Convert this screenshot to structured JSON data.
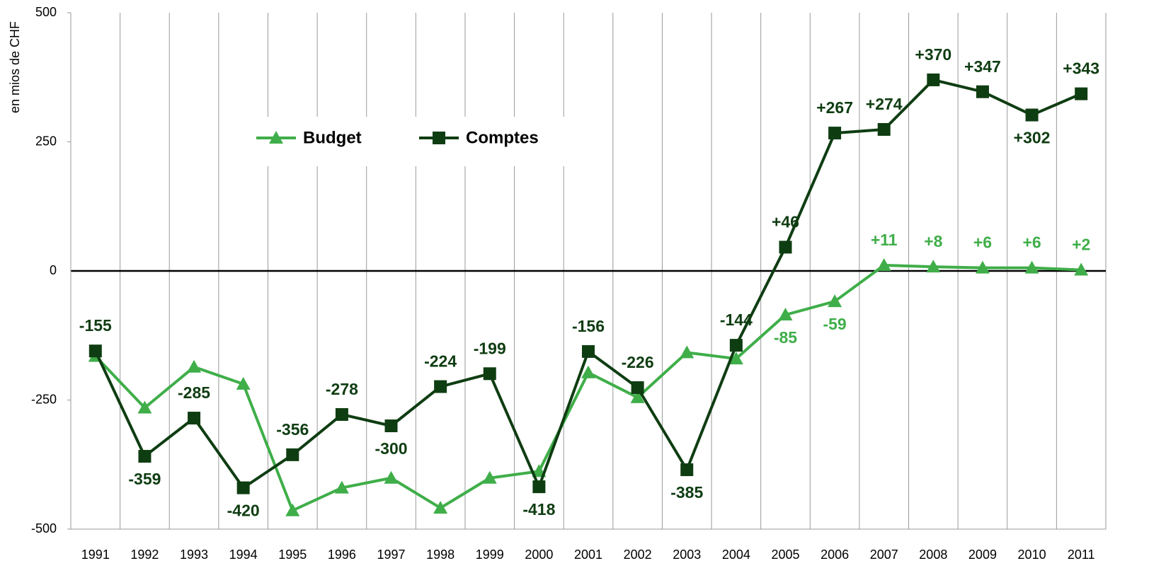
{
  "chart_data": {
    "type": "line",
    "y_axis_label": "en mios de CHF",
    "categories": [
      "1991",
      "1992",
      "1993",
      "1994",
      "1995",
      "1996",
      "1997",
      "1998",
      "1999",
      "2000",
      "2001",
      "2002",
      "2003",
      "2004",
      "2005",
      "2006",
      "2007",
      "2008",
      "2009",
      "2010",
      "2011"
    ],
    "series": [
      {
        "name": "Budget",
        "color": "#3fae49",
        "marker": "triangle",
        "values": [
          -165,
          -265,
          -186,
          -219,
          -464,
          -420,
          -401,
          -459,
          -401,
          -388,
          -197,
          -245,
          -158,
          -170,
          -85,
          -59,
          11,
          8,
          6,
          6,
          2
        ],
        "value_labels": [
          null,
          null,
          null,
          null,
          null,
          null,
          null,
          null,
          null,
          null,
          null,
          null,
          null,
          null,
          "-85",
          "-59",
          "+11",
          "+8",
          "+6",
          "+6",
          "+2"
        ]
      },
      {
        "name": "Comptes",
        "color": "#0f3d12",
        "marker": "square",
        "values": [
          -155,
          -359,
          -285,
          -420,
          -356,
          -278,
          -300,
          -224,
          -199,
          -418,
          -156,
          -226,
          -385,
          -144,
          46,
          267,
          274,
          370,
          347,
          302,
          343
        ],
        "value_labels": [
          "-155",
          "-359",
          "-285",
          "-420",
          "-356",
          "-278",
          "-300",
          "-224",
          "-199",
          "-418",
          "-156",
          "-226",
          "-385",
          "-144",
          "+46",
          "+267",
          "+274",
          "+370",
          "+347",
          "+302",
          "+343"
        ]
      }
    ],
    "ylim": [
      -500,
      500
    ],
    "yticks": [
      500,
      250,
      0,
      -250,
      -500
    ],
    "grid": "vertical"
  }
}
